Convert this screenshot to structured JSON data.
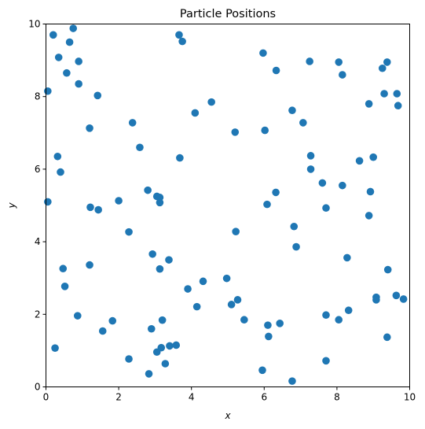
{
  "chart_data": {
    "type": "scatter",
    "title": "Particle Positions",
    "xlabel": "x",
    "ylabel": "y",
    "xlim": [
      0,
      10
    ],
    "ylim": [
      0,
      10
    ],
    "xticks": [
      0,
      2,
      4,
      6,
      8,
      10
    ],
    "yticks": [
      0,
      2,
      4,
      6,
      8,
      10
    ],
    "grid": false,
    "marker_color": "#1f77b4",
    "points": [
      [
        0.05,
        8.15
      ],
      [
        0.2,
        9.7
      ],
      [
        0.35,
        9.08
      ],
      [
        0.75,
        9.88
      ],
      [
        0.65,
        9.5
      ],
      [
        0.57,
        8.65
      ],
      [
        0.9,
        8.97
      ],
      [
        0.9,
        8.35
      ],
      [
        1.42,
        8.03
      ],
      [
        1.2,
        7.13
      ],
      [
        0.05,
        5.1
      ],
      [
        0.32,
        6.35
      ],
      [
        0.4,
        5.92
      ],
      [
        1.22,
        4.95
      ],
      [
        1.44,
        4.88
      ],
      [
        2.0,
        5.13
      ],
      [
        2.38,
        7.28
      ],
      [
        2.58,
        6.6
      ],
      [
        2.8,
        5.42
      ],
      [
        3.05,
        5.25
      ],
      [
        3.13,
        5.22
      ],
      [
        3.13,
        5.08
      ],
      [
        3.66,
        9.7
      ],
      [
        3.75,
        9.52
      ],
      [
        3.68,
        6.31
      ],
      [
        4.1,
        7.55
      ],
      [
        4.55,
        7.85
      ],
      [
        5.2,
        7.02
      ],
      [
        5.97,
        9.2
      ],
      [
        6.02,
        7.07
      ],
      [
        6.33,
        8.72
      ],
      [
        6.77,
        7.62
      ],
      [
        7.07,
        7.28
      ],
      [
        7.25,
        8.97
      ],
      [
        7.28,
        6.37
      ],
      [
        7.28,
        6.0
      ],
      [
        7.6,
        5.62
      ],
      [
        7.7,
        4.93
      ],
      [
        8.05,
        8.95
      ],
      [
        8.15,
        8.6
      ],
      [
        8.15,
        5.55
      ],
      [
        8.62,
        6.23
      ],
      [
        8.88,
        7.8
      ],
      [
        9.0,
        6.33
      ],
      [
        8.92,
        5.38
      ],
      [
        8.88,
        4.72
      ],
      [
        9.25,
        8.78
      ],
      [
        9.3,
        8.08
      ],
      [
        9.38,
        8.95
      ],
      [
        9.65,
        8.08
      ],
      [
        9.68,
        7.75
      ],
      [
        0.25,
        1.07
      ],
      [
        0.47,
        3.26
      ],
      [
        0.52,
        2.77
      ],
      [
        0.87,
        1.96
      ],
      [
        1.2,
        3.36
      ],
      [
        1.56,
        1.54
      ],
      [
        1.83,
        1.82
      ],
      [
        2.28,
        4.27
      ],
      [
        2.28,
        0.77
      ],
      [
        2.93,
        3.66
      ],
      [
        2.9,
        1.6
      ],
      [
        2.83,
        0.36
      ],
      [
        3.05,
        0.96
      ],
      [
        3.13,
        3.25
      ],
      [
        3.17,
        1.08
      ],
      [
        3.2,
        1.84
      ],
      [
        3.28,
        0.64
      ],
      [
        3.38,
        3.5
      ],
      [
        3.4,
        1.13
      ],
      [
        3.58,
        1.15
      ],
      [
        3.9,
        2.7
      ],
      [
        4.15,
        2.21
      ],
      [
        4.32,
        2.91
      ],
      [
        4.97,
        2.99
      ],
      [
        5.1,
        2.27
      ],
      [
        5.22,
        4.28
      ],
      [
        5.27,
        2.4
      ],
      [
        5.45,
        1.85
      ],
      [
        5.95,
        0.46
      ],
      [
        6.08,
        5.03
      ],
      [
        6.1,
        1.7
      ],
      [
        6.12,
        1.39
      ],
      [
        6.32,
        5.36
      ],
      [
        6.43,
        1.75
      ],
      [
        6.77,
        0.16
      ],
      [
        6.82,
        4.42
      ],
      [
        6.88,
        3.86
      ],
      [
        7.7,
        1.98
      ],
      [
        7.7,
        0.72
      ],
      [
        8.05,
        1.85
      ],
      [
        8.28,
        3.56
      ],
      [
        8.32,
        2.11
      ],
      [
        9.08,
        2.47
      ],
      [
        9.08,
        2.4
      ],
      [
        9.38,
        1.37
      ],
      [
        9.4,
        3.23
      ],
      [
        9.63,
        2.52
      ],
      [
        9.83,
        2.42
      ]
    ]
  }
}
